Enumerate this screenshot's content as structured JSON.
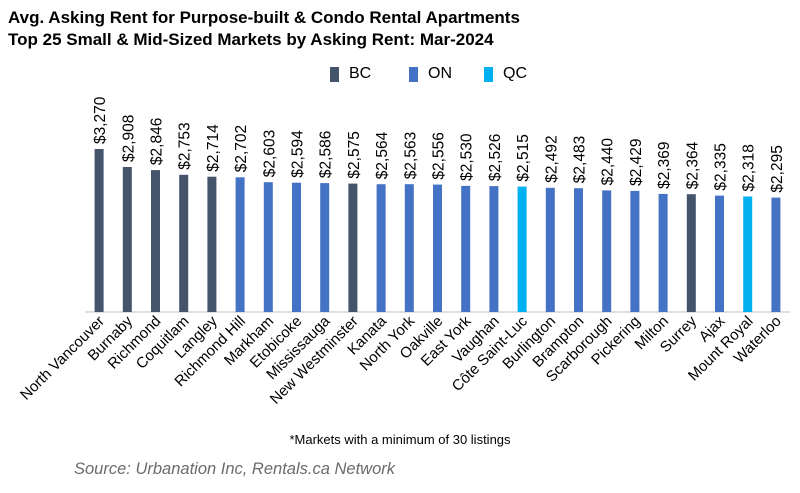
{
  "title_line1": "Avg. Asking Rent for Purpose-built & Condo Rental Apartments",
  "title_line2": "Top 25 Small & Mid-Sized Markets by Asking Rent: Mar-2024",
  "note": "*Markets with a minimum of 30 listings",
  "source": "Source: Urbanation Inc, Rentals.ca Network",
  "colors": {
    "BC": "#44546A",
    "ON": "#4472C4",
    "QC": "#00B0F0"
  },
  "legend": [
    {
      "key": "BC",
      "label": "BC"
    },
    {
      "key": "ON",
      "label": "ON"
    },
    {
      "key": "QC",
      "label": "QC"
    }
  ],
  "chart_data": {
    "type": "bar",
    "title": "Avg. Asking Rent for Purpose-built & Condo Rental Apartments",
    "subtitle": "Top 25 Small & Mid-Sized Markets by Asking Rent: Mar-2024",
    "xlabel": "",
    "ylabel": "",
    "ylim": [
      0,
      3270
    ],
    "grid": false,
    "legend_position": "top",
    "categories": [
      "North Vancouver",
      "Burnaby",
      "Richmond",
      "Coquitlam",
      "Langley",
      "Richmond Hill",
      "Markham",
      "Etobicoke",
      "Mississauga",
      "New Westminster",
      "Kanata",
      "North York",
      "Oakville",
      "East York",
      "Vaughan",
      "Côte Saint-Luc",
      "Burlington",
      "Brampton",
      "Scarborough",
      "Pickering",
      "Milton",
      "Surrey",
      "Ajax",
      "Mount Royal",
      "Waterloo"
    ],
    "values": [
      3270,
      2908,
      2846,
      2753,
      2714,
      2702,
      2603,
      2594,
      2586,
      2575,
      2564,
      2563,
      2556,
      2530,
      2526,
      2515,
      2492,
      2483,
      2440,
      2429,
      2369,
      2364,
      2335,
      2318,
      2295
    ],
    "value_labels": [
      "$3,270",
      "$2,908",
      "$2,846",
      "$2,753",
      "$2,714",
      "$2,702",
      "$2,603",
      "$2,594",
      "$2,586",
      "$2,575",
      "$2,564",
      "$2,563",
      "$2,556",
      "$2,530",
      "$2,526",
      "$2,515",
      "$2,492",
      "$2,483",
      "$2,440",
      "$2,429",
      "$2,369",
      "$2,364",
      "$2,335",
      "$2,318",
      "$2,295"
    ],
    "groups": [
      "BC",
      "BC",
      "BC",
      "BC",
      "BC",
      "ON",
      "ON",
      "ON",
      "ON",
      "BC",
      "ON",
      "ON",
      "ON",
      "ON",
      "ON",
      "QC",
      "ON",
      "ON",
      "ON",
      "ON",
      "ON",
      "BC",
      "ON",
      "QC",
      "ON"
    ]
  }
}
